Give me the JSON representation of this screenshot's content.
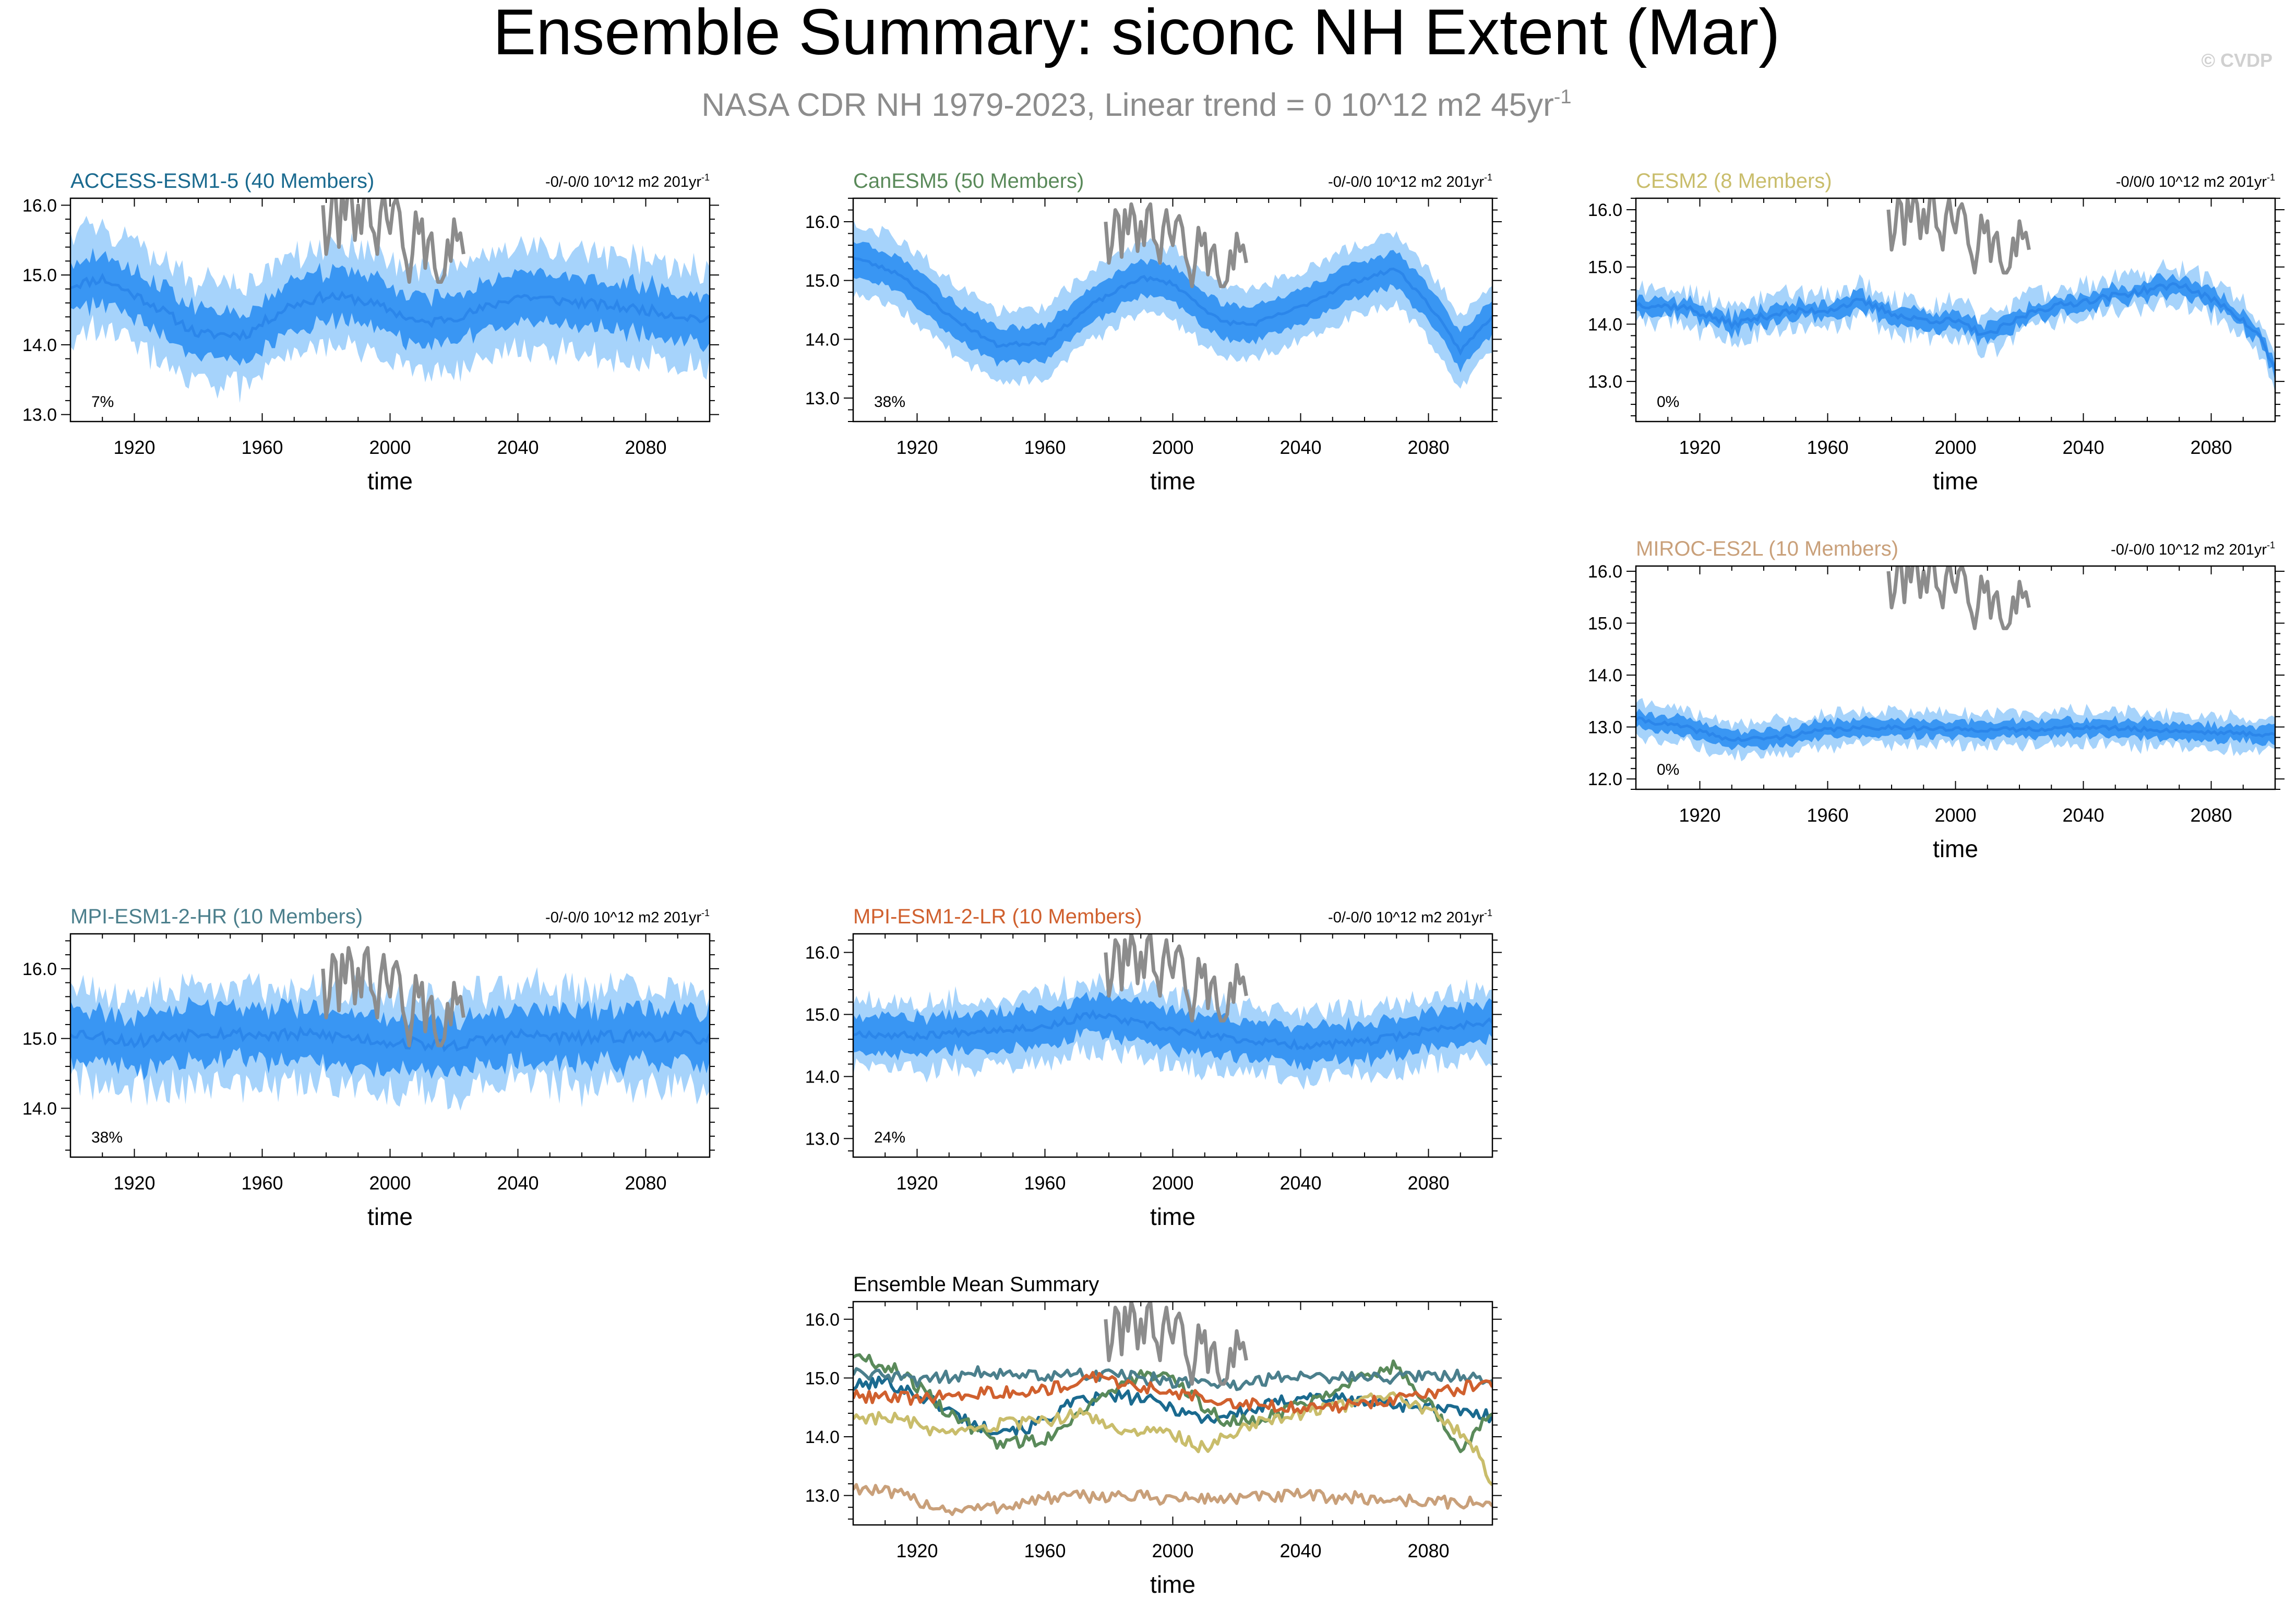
{
  "page": {
    "title": "Ensemble Summary: siconc NH Extent (Mar)",
    "subtitle": "NASA CDR NH 1979-2023, Linear trend = 0 10^12 m2 45yr",
    "subtitle_sup": "-1",
    "watermark": "© CVDP"
  },
  "colors": {
    "band_outer": "#a6d3fb",
    "band_inner": "#3996f3",
    "ens_mean": "#2b86ea",
    "obs": "#8c8c8c"
  },
  "chart_data": [
    {
      "type": "area",
      "id": "access",
      "title": "ACCESS-ESM1-5 (40 Members)",
      "title_color": "#1a6a8f",
      "trend_label": "-0/-0/0 10^12 m2 201yr",
      "trend_sup": "-1",
      "pct_label": "7%",
      "xlabel": "time",
      "xlim": [
        1900,
        2100
      ],
      "ylim": [
        12.9,
        16.1
      ],
      "xticks": [
        1920,
        1960,
        2000,
        2040,
        2080
      ],
      "yticks": [
        "13.0",
        "14.0",
        "15.0",
        "16.0"
      ],
      "mean": [
        [
          1900,
          14.85
        ],
        [
          1910,
          14.95
        ],
        [
          1925,
          14.6
        ],
        [
          1940,
          14.15
        ],
        [
          1955,
          14.15
        ],
        [
          1968,
          14.55
        ],
        [
          1980,
          14.7
        ],
        [
          1990,
          14.65
        ],
        [
          2000,
          14.5
        ],
        [
          2010,
          14.3
        ],
        [
          2025,
          14.45
        ],
        [
          2040,
          14.7
        ],
        [
          2060,
          14.6
        ],
        [
          2080,
          14.5
        ],
        [
          2100,
          14.35
        ]
      ],
      "inner_half": 0.35,
      "outer_half": 0.72,
      "noise": 0.2,
      "seed": 11,
      "obs": true
    },
    {
      "type": "area",
      "id": "canesm",
      "title": "CanESM5 (50 Members)",
      "title_color": "#5a8a5a",
      "trend_label": "-0/-0/0 10^12 m2 201yr",
      "trend_sup": "-1",
      "pct_label": "38%",
      "xlabel": "time",
      "xlim": [
        1900,
        2100
      ],
      "ylim": [
        12.6,
        16.4
      ],
      "xticks": [
        1920,
        1960,
        2000,
        2040,
        2080
      ],
      "yticks": [
        "13.0",
        "14.0",
        "15.0",
        "16.0"
      ],
      "mean": [
        [
          1900,
          15.4
        ],
        [
          1915,
          15.1
        ],
        [
          1930,
          14.4
        ],
        [
          1945,
          13.9
        ],
        [
          1960,
          13.95
        ],
        [
          1975,
          14.6
        ],
        [
          1990,
          15.05
        ],
        [
          2000,
          14.95
        ],
        [
          2015,
          14.3
        ],
        [
          2025,
          14.25
        ],
        [
          2040,
          14.55
        ],
        [
          2055,
          14.95
        ],
        [
          2070,
          15.2
        ],
        [
          2080,
          14.6
        ],
        [
          2090,
          13.8
        ],
        [
          2100,
          14.4
        ]
      ],
      "inner_half": 0.3,
      "outer_half": 0.6,
      "noise": 0.1,
      "seed": 23,
      "obs": true
    },
    {
      "type": "area",
      "id": "cesm",
      "title": "CESM2 (8 Members)",
      "title_color": "#c9bd6b",
      "trend_label": "-0/0/0 10^12 m2 201yr",
      "trend_sup": "-1",
      "pct_label": "0%",
      "xlabel": "time",
      "xlim": [
        1900,
        2100
      ],
      "ylim": [
        12.3,
        16.2
      ],
      "xticks": [
        1920,
        1960,
        2000,
        2040,
        2080
      ],
      "yticks": [
        "13.0",
        "14.0",
        "15.0",
        "16.0"
      ],
      "mean": [
        [
          1900,
          14.35
        ],
        [
          1915,
          14.3
        ],
        [
          1930,
          14.0
        ],
        [
          1945,
          14.2
        ],
        [
          1960,
          14.25
        ],
        [
          1970,
          14.4
        ],
        [
          1985,
          14.1
        ],
        [
          2000,
          14.05
        ],
        [
          2010,
          13.8
        ],
        [
          2025,
          14.25
        ],
        [
          2040,
          14.4
        ],
        [
          2055,
          14.55
        ],
        [
          2070,
          14.7
        ],
        [
          2085,
          14.3
        ],
        [
          2095,
          13.8
        ],
        [
          2100,
          13.2
        ]
      ],
      "inner_half": 0.14,
      "outer_half": 0.3,
      "noise": 0.17,
      "seed": 37,
      "obs": true
    },
    {
      "type": "area",
      "id": "miroc",
      "title": "MIROC-ES2L (10 Members)",
      "title_color": "#c9a07a",
      "trend_label": "-0/-0/0 10^12 m2 201yr",
      "trend_sup": "-1",
      "pct_label": "0%",
      "xlabel": "time",
      "xlim": [
        1900,
        2100
      ],
      "ylim": [
        11.8,
        16.1
      ],
      "xticks": [
        1920,
        1960,
        2000,
        2040,
        2080
      ],
      "yticks": [
        "12.0",
        "13.0",
        "14.0",
        "15.0",
        "16.0"
      ],
      "mean": [
        [
          1900,
          13.15
        ],
        [
          1915,
          13.0
        ],
        [
          1930,
          12.75
        ],
        [
          1945,
          12.8
        ],
        [
          1960,
          12.95
        ],
        [
          1980,
          13.0
        ],
        [
          2000,
          12.95
        ],
        [
          2020,
          12.95
        ],
        [
          2040,
          13.0
        ],
        [
          2060,
          12.95
        ],
        [
          2080,
          12.9
        ],
        [
          2100,
          12.85
        ]
      ],
      "inner_half": 0.16,
      "outer_half": 0.32,
      "noise": 0.12,
      "seed": 41,
      "obs": true
    },
    {
      "type": "area",
      "id": "mpihr",
      "title": "MPI-ESM1-2-HR (10 Members)",
      "title_color": "#4b7f8c",
      "trend_label": "-0/-0/0 10^12 m2 201yr",
      "trend_sup": "-1",
      "pct_label": "38%",
      "xlabel": "time",
      "xlim": [
        1900,
        2100
      ],
      "ylim": [
        13.3,
        16.5
      ],
      "xticks": [
        1920,
        1960,
        2000,
        2040,
        2080
      ],
      "yticks": [
        "14.0",
        "15.0",
        "16.0"
      ],
      "mean": [
        [
          1900,
          15.1
        ],
        [
          1920,
          14.95
        ],
        [
          1940,
          15.1
        ],
        [
          1960,
          15.05
        ],
        [
          1980,
          15.05
        ],
        [
          2000,
          14.95
        ],
        [
          2020,
          14.9
        ],
        [
          2040,
          15.05
        ],
        [
          2060,
          15.0
        ],
        [
          2080,
          15.05
        ],
        [
          2100,
          15.0
        ]
      ],
      "inner_half": 0.38,
      "outer_half": 0.68,
      "noise": 0.25,
      "seed": 53,
      "obs": true
    },
    {
      "type": "area",
      "id": "mpilr",
      "title": "MPI-ESM1-2-LR (10 Members)",
      "title_color": "#d0602e",
      "trend_label": "-0/-0/0 10^12 m2 201yr",
      "trend_sup": "-1",
      "pct_label": "24%",
      "xlabel": "time",
      "xlim": [
        1900,
        2100
      ],
      "ylim": [
        12.7,
        16.3
      ],
      "xticks": [
        1920,
        1960,
        2000,
        2040,
        2080
      ],
      "yticks": [
        "13.0",
        "14.0",
        "15.0",
        "16.0"
      ],
      "mean": [
        [
          1900,
          14.7
        ],
        [
          1920,
          14.65
        ],
        [
          1940,
          14.75
        ],
        [
          1960,
          14.8
        ],
        [
          1975,
          15.0
        ],
        [
          1990,
          14.85
        ],
        [
          2005,
          14.7
        ],
        [
          2020,
          14.6
        ],
        [
          2040,
          14.5
        ],
        [
          2060,
          14.55
        ],
        [
          2080,
          14.75
        ],
        [
          2100,
          14.9
        ]
      ],
      "inner_half": 0.3,
      "outer_half": 0.55,
      "noise": 0.17,
      "seed": 67,
      "obs": true
    },
    {
      "type": "line",
      "id": "mean",
      "title": "Ensemble Mean Summary",
      "title_color": "#000000",
      "xlabel": "time",
      "xlim": [
        1900,
        2100
      ],
      "ylim": [
        12.5,
        16.3
      ],
      "xticks": [
        1920,
        1960,
        2000,
        2040,
        2080
      ],
      "yticks": [
        "13.0",
        "14.0",
        "15.0",
        "16.0"
      ],
      "series": [
        {
          "name": "ACCESS-ESM1-5",
          "color": "#1a6a8f",
          "points": [
            [
              1900,
              14.85
            ],
            [
              1910,
              14.95
            ],
            [
              1925,
              14.6
            ],
            [
              1940,
              14.15
            ],
            [
              1955,
              14.15
            ],
            [
              1968,
              14.55
            ],
            [
              1980,
              14.7
            ],
            [
              1990,
              14.65
            ],
            [
              2000,
              14.5
            ],
            [
              2010,
              14.3
            ],
            [
              2025,
              14.45
            ],
            [
              2040,
              14.7
            ],
            [
              2060,
              14.6
            ],
            [
              2080,
              14.5
            ],
            [
              2100,
              14.35
            ]
          ],
          "seed": 101
        },
        {
          "name": "CanESM5",
          "color": "#5a8a5a",
          "points": [
            [
              1900,
              15.4
            ],
            [
              1915,
              15.1
            ],
            [
              1930,
              14.4
            ],
            [
              1945,
              13.9
            ],
            [
              1960,
              13.95
            ],
            [
              1975,
              14.6
            ],
            [
              1990,
              15.05
            ],
            [
              2000,
              14.95
            ],
            [
              2015,
              14.3
            ],
            [
              2025,
              14.25
            ],
            [
              2040,
              14.55
            ],
            [
              2055,
              14.95
            ],
            [
              2070,
              15.2
            ],
            [
              2080,
              14.6
            ],
            [
              2090,
              13.8
            ],
            [
              2100,
              14.4
            ]
          ],
          "seed": 102
        },
        {
          "name": "CESM2",
          "color": "#c9bd6b",
          "points": [
            [
              1900,
              14.35
            ],
            [
              1915,
              14.3
            ],
            [
              1930,
              14.0
            ],
            [
              1945,
              14.2
            ],
            [
              1960,
              14.25
            ],
            [
              1970,
              14.4
            ],
            [
              1985,
              14.1
            ],
            [
              2000,
              14.05
            ],
            [
              2010,
              13.8
            ],
            [
              2025,
              14.25
            ],
            [
              2040,
              14.4
            ],
            [
              2055,
              14.55
            ],
            [
              2070,
              14.7
            ],
            [
              2085,
              14.3
            ],
            [
              2095,
              13.8
            ],
            [
              2100,
              13.2
            ]
          ],
          "seed": 103
        },
        {
          "name": "MIROC-ES2L",
          "color": "#c9a07a",
          "points": [
            [
              1900,
              13.15
            ],
            [
              1915,
              13.0
            ],
            [
              1930,
              12.75
            ],
            [
              1945,
              12.8
            ],
            [
              1960,
              12.95
            ],
            [
              1980,
              13.0
            ],
            [
              2000,
              12.95
            ],
            [
              2020,
              12.95
            ],
            [
              2040,
              13.0
            ],
            [
              2060,
              12.95
            ],
            [
              2080,
              12.9
            ],
            [
              2100,
              12.85
            ]
          ],
          "seed": 104
        },
        {
          "name": "MPI-ESM1-2-HR",
          "color": "#4b7f8c",
          "points": [
            [
              1900,
              15.1
            ],
            [
              1920,
              14.95
            ],
            [
              1940,
              15.1
            ],
            [
              1960,
              15.05
            ],
            [
              1980,
              15.05
            ],
            [
              2000,
              14.95
            ],
            [
              2020,
              14.9
            ],
            [
              2040,
              15.05
            ],
            [
              2060,
              15.0
            ],
            [
              2080,
              15.05
            ],
            [
              2100,
              15.0
            ]
          ],
          "seed": 105
        },
        {
          "name": "MPI-ESM1-2-LR",
          "color": "#d0602e",
          "points": [
            [
              1900,
              14.7
            ],
            [
              1920,
              14.65
            ],
            [
              1940,
              14.75
            ],
            [
              1960,
              14.8
            ],
            [
              1975,
              15.0
            ],
            [
              1990,
              14.85
            ],
            [
              2005,
              14.7
            ],
            [
              2020,
              14.6
            ],
            [
              2040,
              14.5
            ],
            [
              2060,
              14.55
            ],
            [
              2080,
              14.75
            ],
            [
              2100,
              14.9
            ]
          ],
          "seed": 106
        }
      ],
      "obs": true
    }
  ],
  "obs_series": {
    "name": "NASA CDR NH",
    "years": [
      1979,
      1980,
      1981,
      1982,
      1983,
      1984,
      1985,
      1986,
      1987,
      1988,
      1989,
      1990,
      1991,
      1992,
      1993,
      1994,
      1995,
      1996,
      1997,
      1998,
      1999,
      2000,
      2001,
      2002,
      2003,
      2004,
      2005,
      2006,
      2007,
      2008,
      2009,
      2010,
      2011,
      2012,
      2013,
      2014,
      2015,
      2016,
      2017,
      2018,
      2019,
      2020,
      2021,
      2022,
      2023
    ],
    "values": [
      16.0,
      15.3,
      15.6,
      16.2,
      16.1,
      15.4,
      16.2,
      15.8,
      16.3,
      16.1,
      15.5,
      16.0,
      15.6,
      16.2,
      16.3,
      15.7,
      15.6,
      15.3,
      15.9,
      16.2,
      15.8,
      15.6,
      16.0,
      16.1,
      15.9,
      15.4,
      15.2,
      14.9,
      15.3,
      15.9,
      15.6,
      15.8,
      15.1,
      15.5,
      15.6,
      15.1,
      14.9,
      14.9,
      15.0,
      15.5,
      15.2,
      15.8,
      15.5,
      15.6,
      15.3
    ]
  }
}
